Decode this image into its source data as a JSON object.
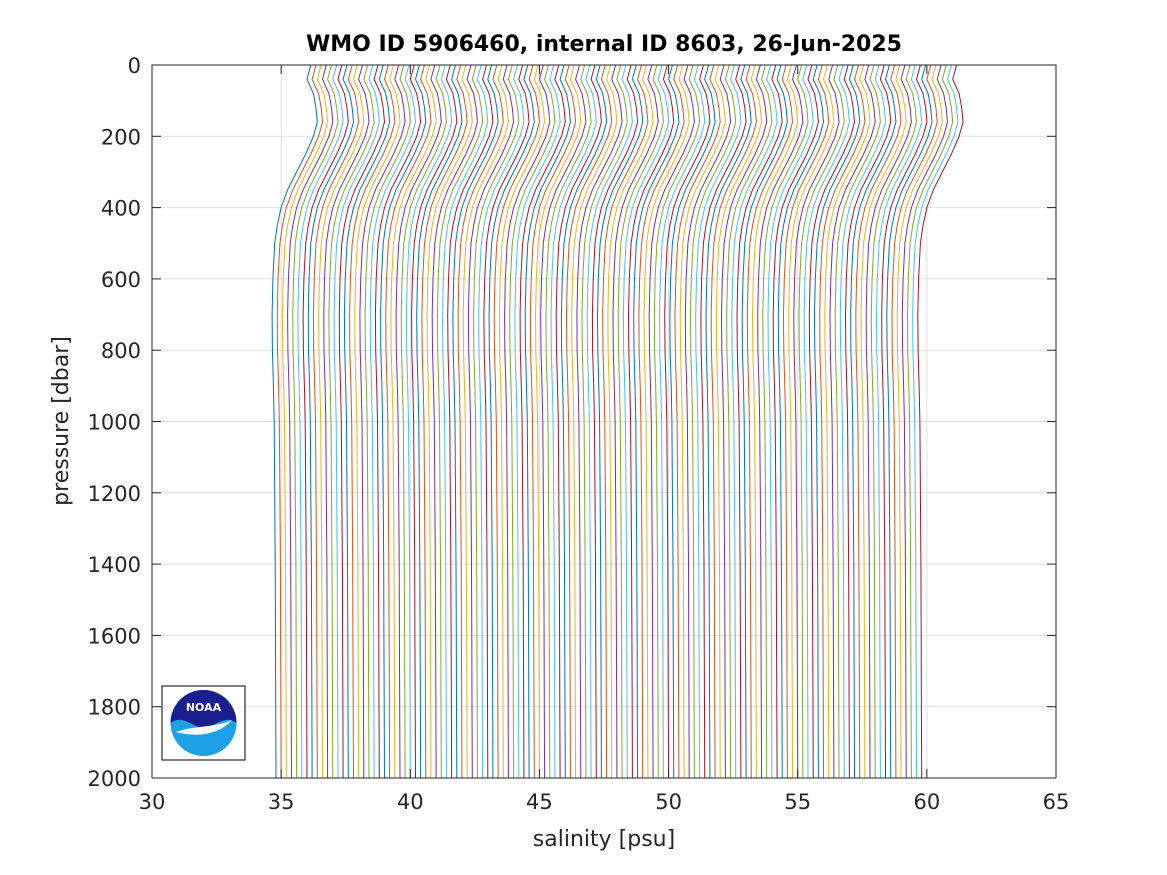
{
  "chart_data": {
    "type": "line",
    "title": "WMO ID 5906460, internal ID 8603, 26-Jun-2025",
    "xlabel": "salinity [psu]",
    "ylabel": "pressure [dbar]",
    "xlim": [
      30,
      65
    ],
    "ylim": [
      0,
      2000
    ],
    "y_reversed": true,
    "grid": true,
    "xticks": [
      30,
      35,
      40,
      45,
      50,
      55,
      60,
      65
    ],
    "yticks": [
      0,
      200,
      400,
      600,
      800,
      1000,
      1200,
      1400,
      1600,
      1800,
      2000
    ],
    "xtick_labels": [
      "30",
      "35",
      "40",
      "45",
      "50",
      "55",
      "60",
      "65"
    ],
    "ytick_labels": [
      "0",
      "200",
      "400",
      "600",
      "800",
      "1000",
      "1200",
      "1400",
      "1600",
      "1800",
      "2000"
    ],
    "color_order": [
      "#0072BD",
      "#D95319",
      "#EDB120",
      "#7E2F8E",
      "#77AC30",
      "#4DBEEE",
      "#A2142F"
    ],
    "profile_shape": {
      "pressure": [
        0,
        40,
        80,
        120,
        160,
        200,
        250,
        300,
        350,
        400,
        450,
        500,
        600,
        700,
        800,
        900,
        1000,
        1200,
        1400,
        1600,
        1800,
        2000
      ],
      "salinity_anomaly_from_deep": [
        1.35,
        1.2,
        1.45,
        1.55,
        1.6,
        1.45,
        1.15,
        0.8,
        0.45,
        0.2,
        0.05,
        -0.05,
        -0.12,
        -0.15,
        -0.14,
        -0.1,
        -0.07,
        -0.05,
        -0.03,
        -0.02,
        -0.01,
        0.0
      ]
    },
    "series_offset_psu": 0.2,
    "series_deep_salinity": [
      34.8,
      35.0,
      35.2,
      35.4,
      35.6,
      35.8,
      36.0,
      36.2,
      36.4,
      36.6,
      36.8,
      37.0,
      37.2,
      37.4,
      37.6,
      37.8,
      38.0,
      38.2,
      38.4,
      38.6,
      38.8,
      39.0,
      39.2,
      39.4,
      39.6,
      39.8,
      40.0,
      40.2,
      40.4,
      40.6,
      40.8,
      41.0,
      41.2,
      41.4,
      41.6,
      41.8,
      42.0,
      42.2,
      42.4,
      42.6,
      42.8,
      43.0,
      43.2,
      43.4,
      43.6,
      43.8,
      44.0,
      44.2,
      44.4,
      44.6,
      44.8,
      45.0,
      45.2,
      45.4,
      45.6,
      45.8,
      46.0,
      46.2,
      46.4,
      46.6,
      46.8,
      47.0,
      47.2,
      47.4,
      47.6,
      47.8,
      48.0,
      48.2,
      48.4,
      48.6,
      48.8,
      49.0,
      49.2,
      49.4,
      49.6,
      49.8,
      50.0,
      50.2,
      50.4,
      50.6,
      50.8,
      51.0,
      51.2,
      51.4,
      51.6,
      51.8,
      52.0,
      52.2,
      52.4,
      52.6,
      52.8,
      53.0,
      53.2,
      53.4,
      53.6,
      53.8,
      54.0,
      54.2,
      54.4,
      54.6,
      54.8,
      55.0,
      55.2,
      55.4,
      55.6,
      55.8,
      56.0,
      56.2,
      56.4,
      56.6,
      56.8,
      57.0,
      57.2,
      57.4,
      57.6,
      57.8,
      58.0,
      58.2,
      58.4,
      58.6,
      58.8,
      59.0,
      59.2,
      59.4,
      59.6,
      59.8
    ]
  },
  "logo": {
    "text": "NOAA",
    "colors": {
      "navy": "#1a1f8f",
      "blue": "#1ea0e6",
      "white": "#ffffff"
    }
  }
}
